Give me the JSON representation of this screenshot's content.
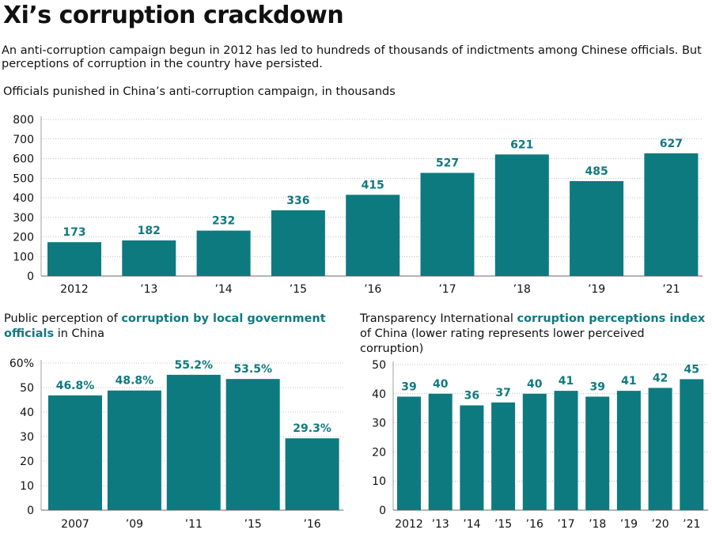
{
  "title": "Xi’s corruption crackdown",
  "subtitle": "An anti-corruption campaign begun in 2012 has led to hundreds of thousands of indictments among Chinese officials. But perceptions of corruption in the country have persisted.",
  "colors": {
    "bar": "#0d7a80",
    "label": "#0f7a80",
    "grid": "#888888"
  },
  "chart2_title": {
    "before": "Public perception of ",
    "highlight": "corruption by local government officials",
    "after": " in China"
  },
  "chart3_title": {
    "before": "Transparency International ",
    "highlight": "corruption perceptions index",
    "after": " of China (lower rating represents lower perceived corruption)"
  },
  "chart_data": [
    {
      "type": "bar",
      "title": "Officials punished in China’s anti-corruption campaign, in thousands",
      "categories": [
        "2012",
        "’13",
        "’14",
        "’15",
        "’16",
        "’17",
        "’18",
        "’19",
        "’21"
      ],
      "values": [
        173,
        182,
        232,
        336,
        415,
        527,
        621,
        485,
        627
      ],
      "data_labels": [
        "173",
        "182",
        "232",
        "336",
        "415",
        "527",
        "621",
        "485",
        "627"
      ],
      "yticks": [
        "0",
        "100",
        "200",
        "300",
        "400",
        "500",
        "600",
        "700",
        "800"
      ],
      "ylim": [
        0,
        800
      ]
    },
    {
      "type": "bar",
      "categories": [
        "2007",
        "’09",
        "’11",
        "’15",
        "’16"
      ],
      "values": [
        46.8,
        48.8,
        55.2,
        53.5,
        29.3
      ],
      "data_labels": [
        "46.8%",
        "48.8%",
        "55.2%",
        "53.5%",
        "29.3%"
      ],
      "yticks": [
        "0",
        "10",
        "20",
        "30",
        "40",
        "50",
        "60%"
      ],
      "ylim": [
        0,
        60
      ]
    },
    {
      "type": "bar",
      "categories": [
        "2012",
        "’13",
        "’14",
        "’15",
        "’16",
        "’17",
        "’18",
        "’19",
        "’20",
        "’21"
      ],
      "values": [
        39,
        40,
        36,
        37,
        40,
        41,
        39,
        41,
        42,
        45
      ],
      "data_labels": [
        "39",
        "40",
        "36",
        "37",
        "40",
        "41",
        "39",
        "41",
        "42",
        "45"
      ],
      "yticks": [
        "0",
        "10",
        "20",
        "30",
        "40",
        "50"
      ],
      "ylim": [
        0,
        50
      ]
    }
  ]
}
